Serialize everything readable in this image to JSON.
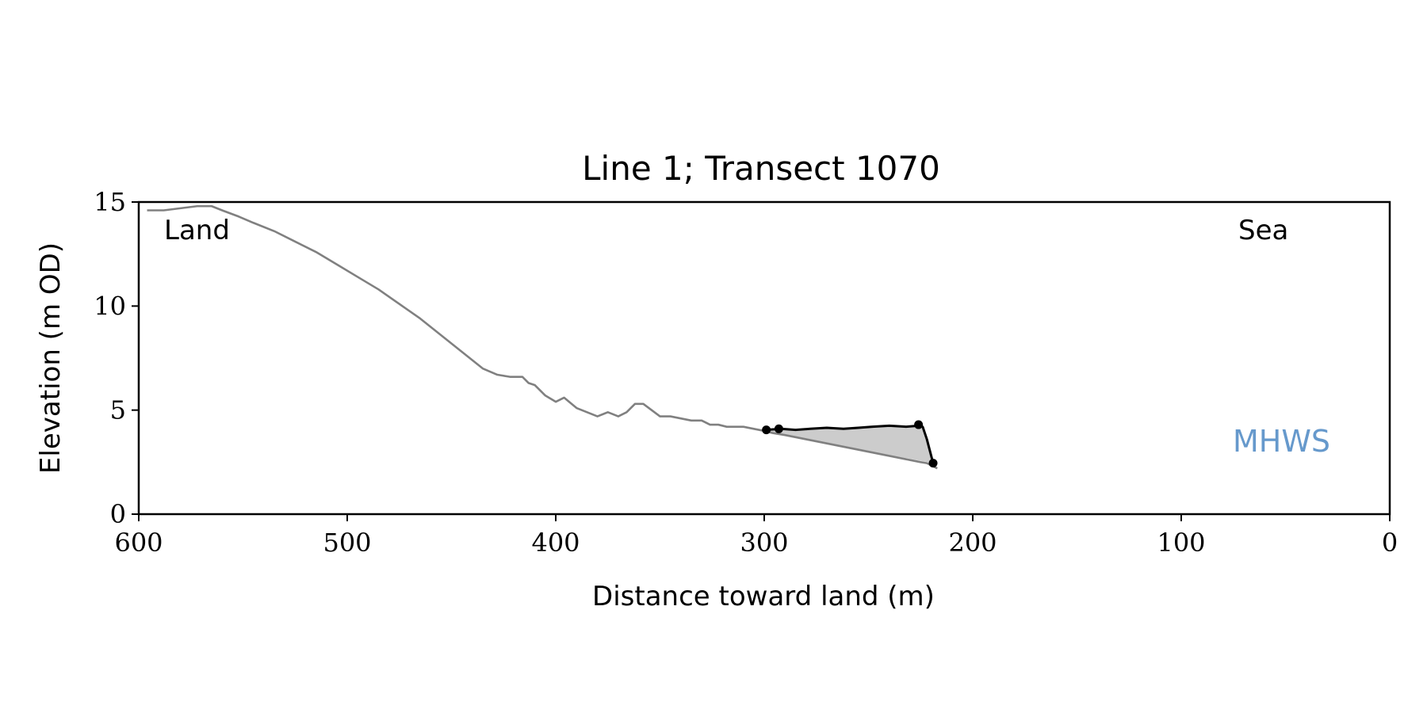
{
  "chart_data": {
    "type": "line",
    "title": "Line 1; Transect 1070",
    "xlabel": "Distance toward land (m)",
    "ylabel": "Elevation (m OD)",
    "xlim": [
      600,
      0
    ],
    "ylim": [
      0,
      15
    ],
    "x_ticks": [
      600,
      500,
      400,
      300,
      200,
      100,
      0
    ],
    "y_ticks": [
      0,
      5,
      10,
      15
    ],
    "grid": false,
    "annotations": {
      "land": "Land",
      "sea": "Sea",
      "mhws": "MHWS"
    },
    "colors": {
      "profile": "#808080",
      "segment": "#000000",
      "fill": "#cccccc",
      "mhws_text": "#6699cc"
    },
    "series": [
      {
        "role": "profile",
        "x": [
          596,
          588,
          580,
          572,
          565,
          560,
          552,
          545,
          535,
          525,
          515,
          505,
          495,
          485,
          475,
          465,
          455,
          445,
          435,
          428,
          422,
          416,
          413,
          410,
          405,
          400,
          396,
          390,
          385,
          380,
          375,
          370,
          366,
          362,
          358,
          354,
          350,
          345,
          340,
          335,
          330,
          326,
          322,
          318,
          314,
          310,
          305,
          300,
          296,
          290,
          285,
          280,
          275,
          270,
          265,
          260,
          255,
          250,
          245,
          240,
          235,
          230,
          225,
          222,
          219,
          217
        ],
        "y": [
          14.6,
          14.6,
          14.7,
          14.8,
          14.8,
          14.6,
          14.3,
          14.0,
          13.6,
          13.1,
          12.6,
          12.0,
          11.4,
          10.8,
          10.1,
          9.4,
          8.6,
          7.8,
          7.0,
          6.7,
          6.6,
          6.6,
          6.3,
          6.2,
          5.7,
          5.4,
          5.6,
          5.1,
          4.9,
          4.7,
          4.9,
          4.7,
          4.9,
          5.3,
          5.3,
          5.0,
          4.7,
          4.7,
          4.6,
          4.5,
          4.5,
          4.3,
          4.3,
          4.2,
          4.2,
          4.2,
          4.1,
          4.0,
          3.9,
          3.8,
          3.7,
          3.6,
          3.5,
          3.4,
          3.3,
          3.2,
          3.1,
          3.0,
          2.9,
          2.8,
          2.7,
          2.6,
          2.5,
          2.45,
          2.3,
          2.2
        ]
      },
      {
        "role": "segment",
        "x": [
          299,
          292,
          285,
          278,
          270,
          262,
          255,
          248,
          240,
          232,
          226,
          224,
          222,
          219
        ],
        "y": [
          4.05,
          4.1,
          4.05,
          4.1,
          4.15,
          4.1,
          4.15,
          4.2,
          4.25,
          4.2,
          4.25,
          4.2,
          3.6,
          2.45
        ]
      }
    ],
    "markers": {
      "x": [
        299,
        293,
        226,
        219
      ],
      "y": [
        4.05,
        4.1,
        4.3,
        2.45
      ]
    },
    "fill_region": {
      "upper_x": [
        299,
        292,
        285,
        278,
        270,
        262,
        255,
        248,
        240,
        232,
        226,
        224,
        222,
        219
      ],
      "upper_y": [
        4.05,
        4.1,
        4.05,
        4.1,
        4.15,
        4.1,
        4.15,
        4.2,
        4.25,
        4.2,
        4.25,
        4.2,
        3.6,
        2.45
      ],
      "lower_x": [
        219,
        300
      ],
      "lower_y": [
        2.45,
        4.0
      ]
    }
  }
}
